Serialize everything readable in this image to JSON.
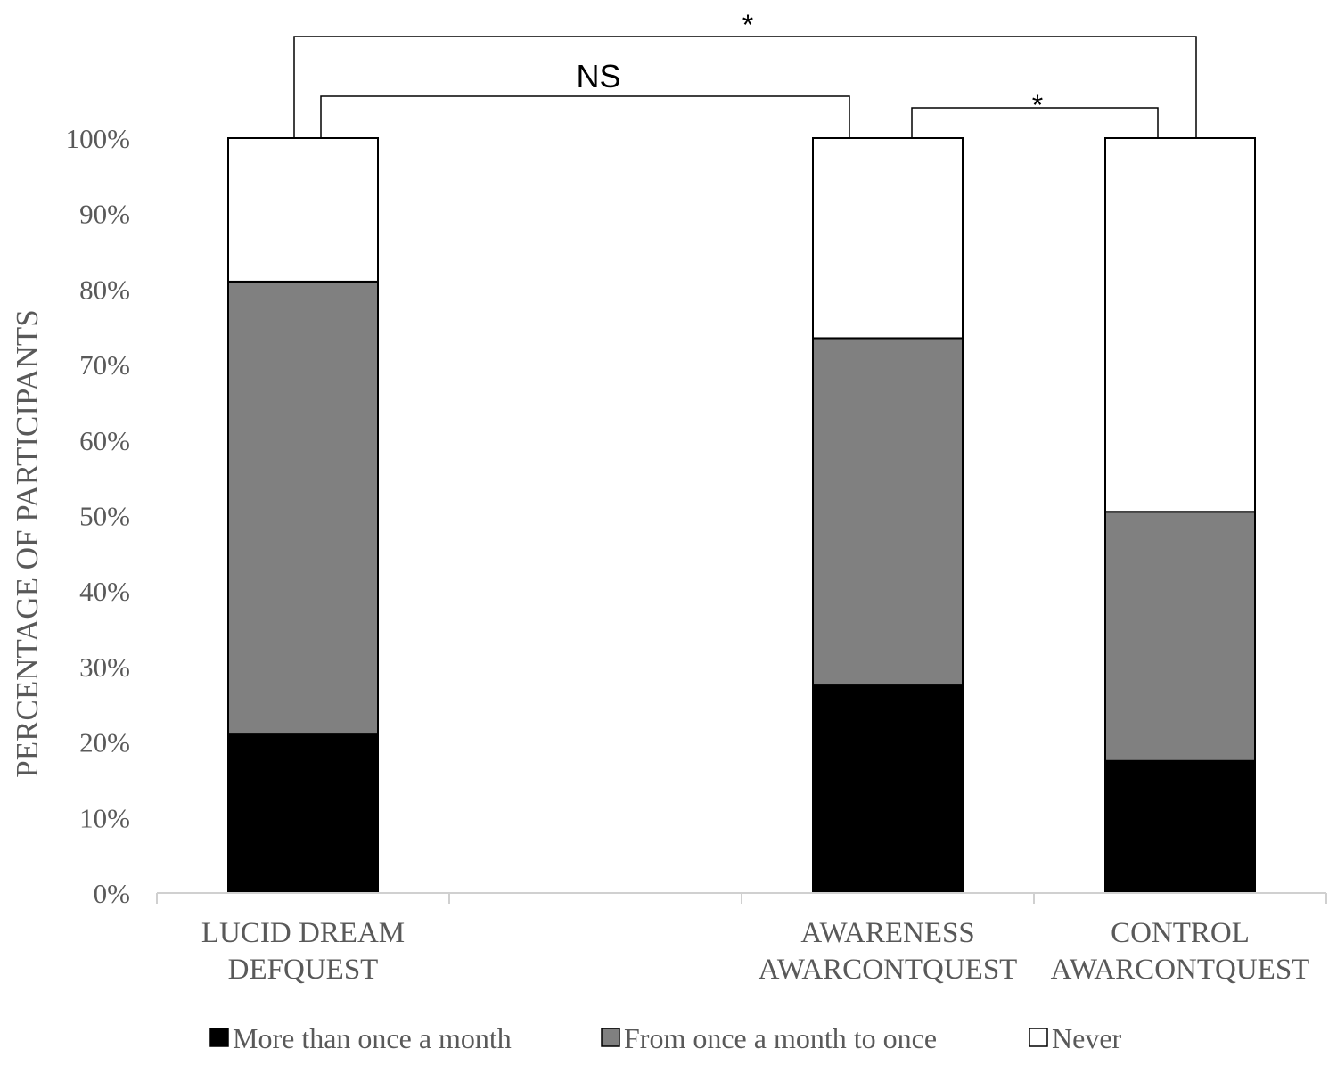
{
  "chart_data": {
    "type": "bar",
    "stacked": true,
    "percent_stacked": true,
    "ylabel": "PERCENTAGE OF PARTICIPANTS",
    "xlabel": "",
    "ylim": [
      0,
      100
    ],
    "yticks": [
      "0%",
      "10%",
      "20%",
      "30%",
      "40%",
      "50%",
      "60%",
      "70%",
      "80%",
      "90%",
      "100%"
    ],
    "categories": [
      [
        "LUCID DREAM",
        "DEFQUEST"
      ],
      [
        "",
        ""
      ],
      [
        "AWARENESS",
        "AWARCONTQUEST"
      ],
      [
        "CONTROL",
        "AWARCONTQUEST"
      ]
    ],
    "series": [
      {
        "name": "More than once a month",
        "color": "#000000",
        "values": [
          21,
          null,
          27.5,
          17.5
        ]
      },
      {
        "name": "From once a month to once",
        "color": "#808080",
        "values": [
          60,
          null,
          46,
          33
        ]
      },
      {
        "name": "Never",
        "color": "#ffffff",
        "values": [
          19,
          null,
          26.5,
          49.5
        ]
      }
    ],
    "significance": [
      {
        "from": 0,
        "to": 3,
        "label": "*"
      },
      {
        "from": 0,
        "to": 2,
        "label": "NS"
      },
      {
        "from": 2,
        "to": 3,
        "label": "*"
      }
    ],
    "legend_position": "bottom",
    "grid": false
  }
}
